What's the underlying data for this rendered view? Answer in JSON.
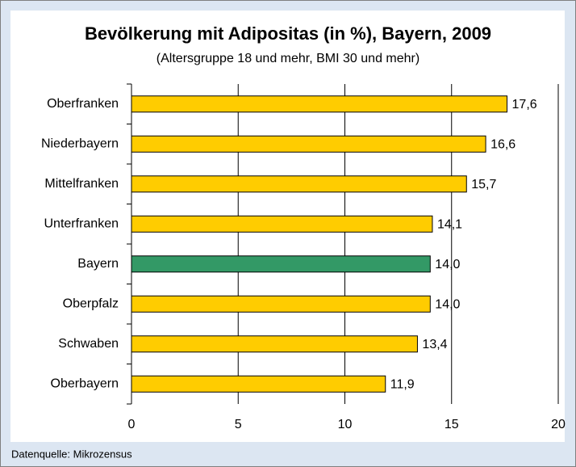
{
  "chart_data": {
    "type": "bar",
    "orientation": "horizontal",
    "title": "Bevölkerung mit Adipositas (in %), Bayern, 2009",
    "subtitle": "(Altersgruppe 18 und mehr, BMI 30 und mehr)",
    "source": "Datenquelle: Mikrozensus",
    "categories": [
      "Oberfranken",
      "Niederbayern",
      "Mittelfranken",
      "Unterfranken",
      "Bayern",
      "Oberpfalz",
      "Schwaben",
      "Oberbayern"
    ],
    "values": [
      17.6,
      16.6,
      15.7,
      14.1,
      14.0,
      14.0,
      13.4,
      11.9
    ],
    "value_labels": [
      "17,6",
      "16,6",
      "15,7",
      "14,1",
      "14,0",
      "14,0",
      "13,4",
      "11,9"
    ],
    "colors": [
      "#ffcc00",
      "#ffcc00",
      "#ffcc00",
      "#ffcc00",
      "#339966",
      "#ffcc00",
      "#ffcc00",
      "#ffcc00"
    ],
    "xlim": [
      0,
      20
    ],
    "xticks": [
      0,
      5,
      10,
      15,
      20
    ],
    "grid": true
  }
}
